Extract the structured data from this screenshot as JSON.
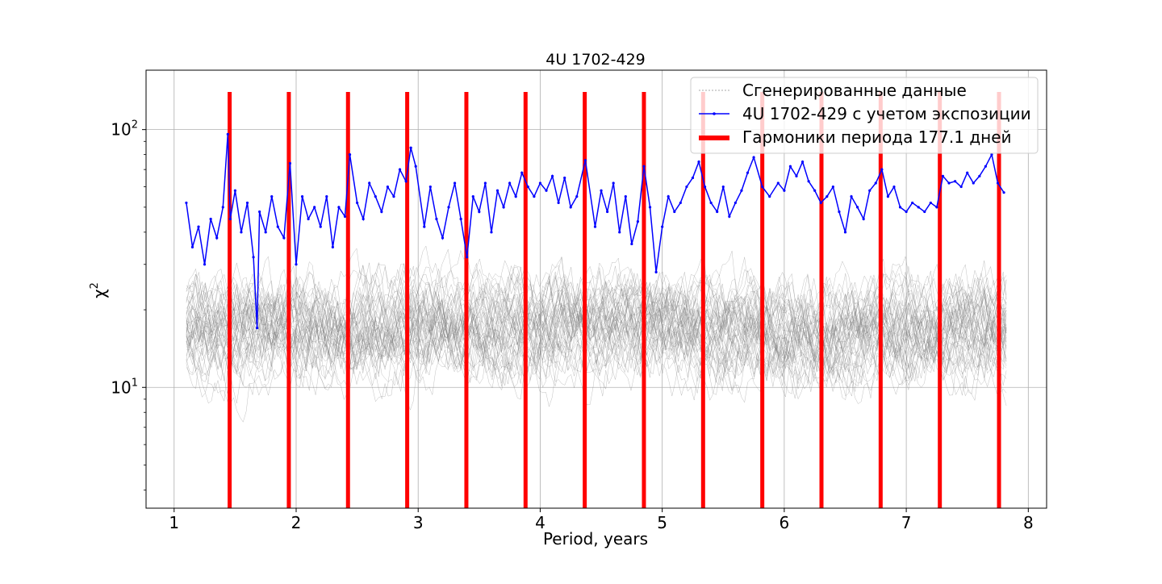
{
  "chart_data": {
    "type": "line",
    "title": "4U 1702-429",
    "xlabel": "Period, years",
    "ylabel": "χ",
    "ylabel_superscript": "2",
    "xscale": "linear",
    "yscale": "log",
    "xlim": [
      0.77,
      8.15
    ],
    "ylim": [
      3.4,
      170
    ],
    "grid": true,
    "x_ticks": [
      1,
      2,
      3,
      4,
      5,
      6,
      7,
      8
    ],
    "x_tick_labels": [
      "1",
      "2",
      "3",
      "4",
      "5",
      "6",
      "7",
      "8"
    ],
    "y_ticks": [
      10,
      100
    ],
    "y_tick_labels": [
      {
        "base": "10",
        "exp": "1"
      },
      {
        "base": "10",
        "exp": "2"
      }
    ],
    "legend_position": "upper right",
    "series": [
      {
        "name": "Сгенерированные данные",
        "color": "#808080",
        "style": "thin lines, many realizations",
        "x_range": [
          1.1,
          7.82
        ],
        "typical_center": 17,
        "typical_spread_low": 7,
        "typical_spread_high": 40
      },
      {
        "name": "4U 1702-429 с учетом экспозиции",
        "color": "#0000ff",
        "style": "line with small point markers",
        "x": [
          1.1,
          1.15,
          1.2,
          1.25,
          1.3,
          1.35,
          1.4,
          1.44,
          1.46,
          1.5,
          1.55,
          1.6,
          1.65,
          1.68,
          1.7,
          1.75,
          1.8,
          1.85,
          1.9,
          1.95,
          2.0,
          2.05,
          2.1,
          2.15,
          2.2,
          2.25,
          2.3,
          2.35,
          2.4,
          2.44,
          2.5,
          2.55,
          2.6,
          2.65,
          2.7,
          2.75,
          2.8,
          2.85,
          2.9,
          2.94,
          2.98,
          3.05,
          3.1,
          3.15,
          3.2,
          3.25,
          3.3,
          3.35,
          3.4,
          3.45,
          3.5,
          3.55,
          3.6,
          3.65,
          3.7,
          3.75,
          3.8,
          3.85,
          3.9,
          3.95,
          4.0,
          4.05,
          4.1,
          4.15,
          4.2,
          4.25,
          4.3,
          4.37,
          4.45,
          4.5,
          4.55,
          4.6,
          4.65,
          4.7,
          4.75,
          4.8,
          4.85,
          4.9,
          4.95,
          5.0,
          5.05,
          5.1,
          5.15,
          5.2,
          5.25,
          5.3,
          5.35,
          5.4,
          5.45,
          5.5,
          5.55,
          5.6,
          5.65,
          5.7,
          5.75,
          5.82,
          5.88,
          5.95,
          6.0,
          6.05,
          6.1,
          6.15,
          6.2,
          6.25,
          6.3,
          6.35,
          6.4,
          6.45,
          6.5,
          6.55,
          6.6,
          6.65,
          6.7,
          6.75,
          6.8,
          6.85,
          6.9,
          6.95,
          7.0,
          7.05,
          7.1,
          7.15,
          7.2,
          7.25,
          7.3,
          7.35,
          7.4,
          7.45,
          7.5,
          7.55,
          7.6,
          7.65,
          7.7,
          7.75,
          7.8
        ],
        "values": [
          52,
          35,
          42,
          30,
          45,
          38,
          50,
          96,
          45,
          58,
          40,
          52,
          32,
          17,
          48,
          40,
          55,
          42,
          38,
          74,
          30,
          55,
          45,
          50,
          42,
          55,
          35,
          50,
          46,
          80,
          52,
          45,
          62,
          55,
          48,
          60,
          55,
          70,
          63,
          85,
          72,
          42,
          60,
          45,
          38,
          50,
          62,
          45,
          32,
          55,
          48,
          62,
          40,
          58,
          50,
          62,
          55,
          68,
          60,
          55,
          62,
          58,
          66,
          52,
          65,
          50,
          55,
          76,
          42,
          58,
          48,
          62,
          40,
          55,
          36,
          44,
          72,
          50,
          28,
          42,
          55,
          48,
          52,
          60,
          65,
          75,
          60,
          52,
          48,
          60,
          46,
          52,
          58,
          68,
          78,
          60,
          55,
          62,
          58,
          72,
          66,
          75,
          63,
          58,
          52,
          55,
          60,
          48,
          40,
          55,
          50,
          45,
          58,
          62,
          70,
          55,
          60,
          50,
          48,
          52,
          50,
          48,
          52,
          50,
          66,
          62,
          63,
          60,
          68,
          62,
          66,
          72,
          80,
          62,
          57
        ]
      },
      {
        "name": "Гармоники периода 177.1 дней",
        "color": "#ff0000",
        "style": "thick vertical bars",
        "x": [
          1.455,
          1.94,
          2.425,
          2.91,
          3.395,
          3.88,
          4.365,
          4.85,
          5.335,
          5.82,
          6.305,
          6.79,
          7.275,
          7.76
        ],
        "values": [
          140,
          140,
          140,
          140,
          140,
          140,
          140,
          140,
          140,
          140,
          140,
          140,
          140,
          140
        ]
      }
    ]
  }
}
